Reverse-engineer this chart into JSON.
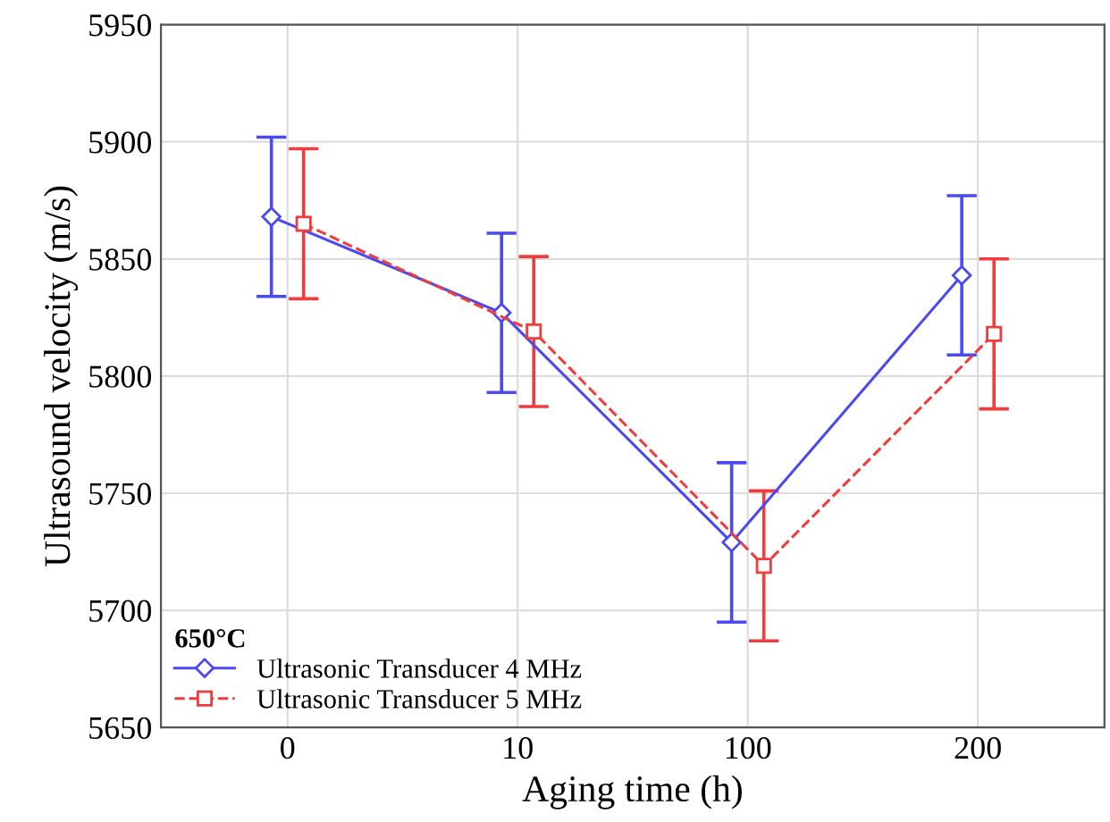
{
  "chart_data": {
    "type": "line",
    "xlabel": "Aging time (h)",
    "ylabel": "Ultrasound velocity (m/s)",
    "legend_title": "650°C",
    "categories": [
      "0",
      "10",
      "100",
      "200"
    ],
    "series": [
      {
        "name": "Ultrasonic Transducer 4 MHz",
        "color": "#4a4af0",
        "marker": "diamond",
        "line_style": "solid",
        "values": [
          5868,
          5827,
          5729,
          5843
        ],
        "errors": [
          34,
          34,
          34,
          34
        ]
      },
      {
        "name": "Ultrasonic Transducer 5 MHz",
        "color": "#f03c3c",
        "marker": "square",
        "line_style": "dashed",
        "values": [
          5865,
          5819,
          5719,
          5818
        ],
        "errors": [
          32,
          32,
          32,
          32
        ]
      }
    ],
    "ylim": [
      5650,
      5950
    ],
    "yticks": [
      5650,
      5700,
      5750,
      5800,
      5850,
      5900,
      5950
    ],
    "grid": true,
    "legend": "bottom left"
  }
}
